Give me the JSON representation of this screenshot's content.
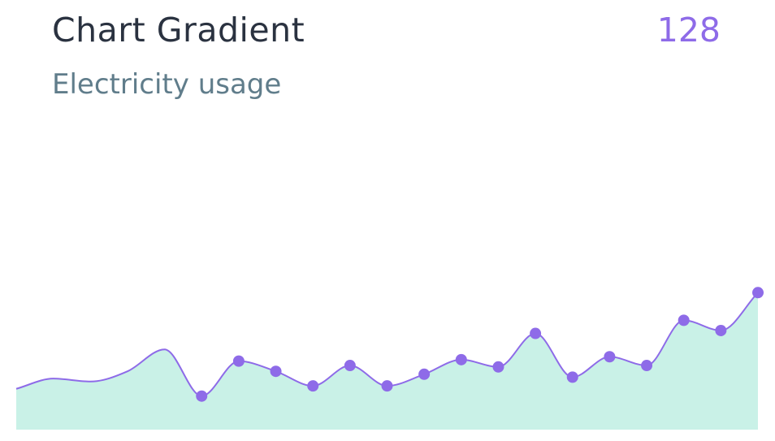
{
  "header": {
    "title": "Chart Gradient",
    "subtitle": "Electricity usage",
    "value": "128"
  },
  "colors": {
    "line": "#8e6be8",
    "marker": "#8e6be8",
    "area_fill": "#c9f1e7",
    "title": "#2a3240",
    "subtitle": "#607d8b"
  },
  "chart_data": {
    "type": "area",
    "title": "Chart Gradient",
    "subtitle": "Electricity usage",
    "xlabel": "",
    "ylabel": "",
    "ylim": [
      0,
      100
    ],
    "grid": false,
    "legend": "none",
    "series": [
      {
        "values": [
          14,
          17.5,
          16.5,
          20,
          27.5,
          11.5,
          23.5,
          20,
          15,
          22,
          15,
          19,
          24,
          21.5,
          33,
          18,
          25,
          22,
          37.5,
          34,
          47
        ],
        "markers": [
          false,
          false,
          false,
          false,
          false,
          true,
          true,
          true,
          true,
          true,
          true,
          true,
          true,
          true,
          true,
          true,
          true,
          true,
          true,
          true,
          true
        ]
      }
    ]
  }
}
